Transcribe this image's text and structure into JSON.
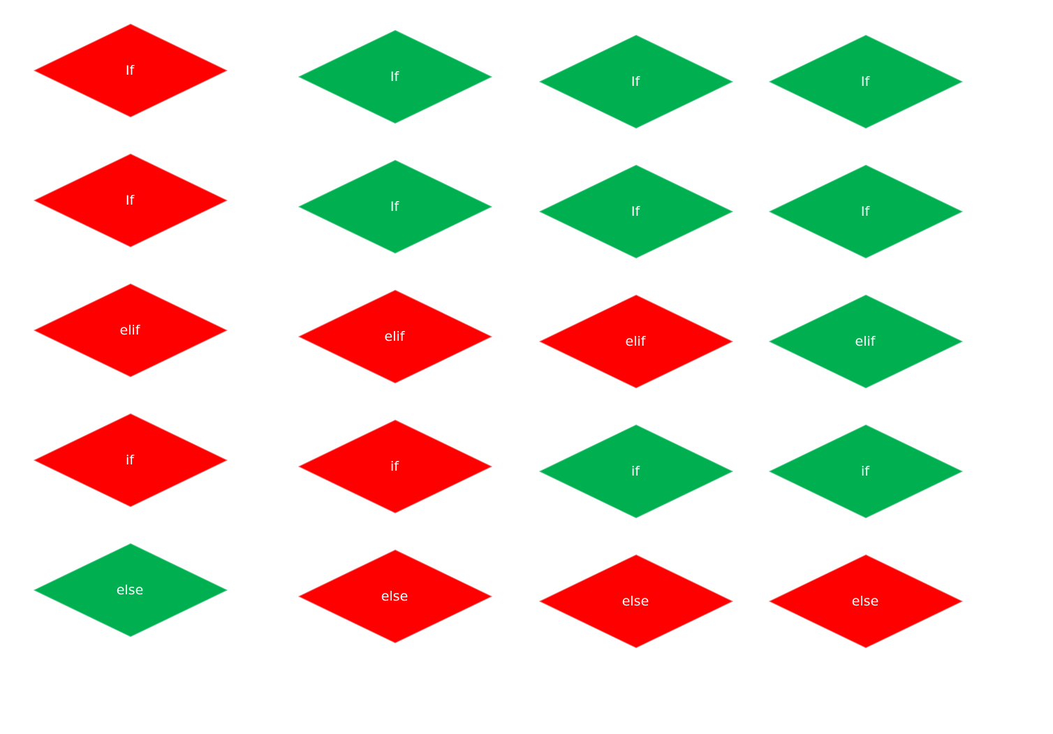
{
  "colors": {
    "red": "#ff0000",
    "green": "#00b050",
    "red_outline": "#f06a6a",
    "green_outline": "#4cc986",
    "label": "#ffffff",
    "background": "#ffffff"
  },
  "columns": [
    {
      "cells": [
        {
          "label": "If",
          "color": "red"
        },
        {
          "label": "If",
          "color": "red"
        },
        {
          "label": "elif",
          "color": "red"
        },
        {
          "label": "if",
          "color": "red"
        },
        {
          "label": "else",
          "color": "green"
        }
      ]
    },
    {
      "cells": [
        {
          "label": "If",
          "color": "green"
        },
        {
          "label": "If",
          "color": "green"
        },
        {
          "label": "elif",
          "color": "red"
        },
        {
          "label": "if",
          "color": "red"
        },
        {
          "label": "else",
          "color": "red"
        }
      ]
    },
    {
      "cells": [
        {
          "label": "If",
          "color": "green"
        },
        {
          "label": "If",
          "color": "green"
        },
        {
          "label": "elif",
          "color": "red"
        },
        {
          "label": "if",
          "color": "green"
        },
        {
          "label": "else",
          "color": "red"
        }
      ]
    },
    {
      "cells": [
        {
          "label": "If",
          "color": "green"
        },
        {
          "label": "If",
          "color": "green"
        },
        {
          "label": "elif",
          "color": "green"
        },
        {
          "label": "if",
          "color": "green"
        },
        {
          "label": "else",
          "color": "red"
        }
      ]
    }
  ]
}
